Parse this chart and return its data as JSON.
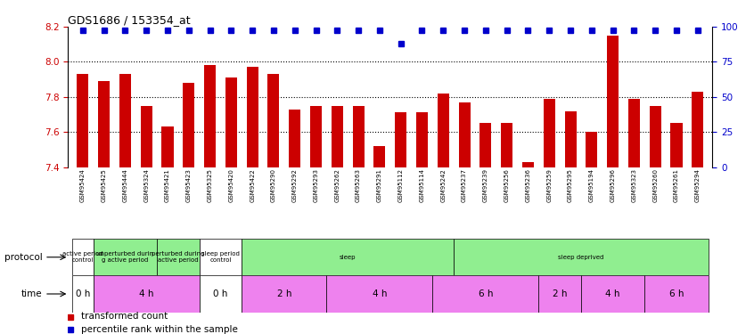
{
  "title": "GDS1686 / 153354_at",
  "samples": [
    "GSM95424",
    "GSM95425",
    "GSM95444",
    "GSM95324",
    "GSM95421",
    "GSM95423",
    "GSM95325",
    "GSM95420",
    "GSM95422",
    "GSM95290",
    "GSM95292",
    "GSM95293",
    "GSM95262",
    "GSM95263",
    "GSM95291",
    "GSM95112",
    "GSM95114",
    "GSM95242",
    "GSM95237",
    "GSM95239",
    "GSM95256",
    "GSM95236",
    "GSM95259",
    "GSM95295",
    "GSM95194",
    "GSM95296",
    "GSM95323",
    "GSM95260",
    "GSM95261",
    "GSM95294"
  ],
  "bar_values": [
    7.93,
    7.89,
    7.93,
    7.75,
    7.63,
    7.88,
    7.98,
    7.91,
    7.97,
    7.93,
    7.73,
    7.75,
    7.75,
    7.75,
    7.52,
    7.71,
    7.71,
    7.82,
    7.77,
    7.65,
    7.65,
    7.43,
    7.79,
    7.72,
    7.6,
    8.15,
    7.79,
    7.75,
    7.65,
    7.83
  ],
  "percentile_values": [
    100,
    100,
    100,
    100,
    100,
    100,
    100,
    100,
    100,
    100,
    100,
    100,
    100,
    100,
    100,
    90,
    100,
    100,
    100,
    100,
    100,
    100,
    100,
    100,
    100,
    100,
    100,
    100,
    100,
    100
  ],
  "ylim_left": [
    7.4,
    8.2
  ],
  "ylim_right": [
    0,
    100
  ],
  "yticks_left": [
    7.4,
    7.6,
    7.8,
    8.0,
    8.2
  ],
  "yticks_right": [
    0,
    25,
    50,
    75,
    100
  ],
  "hlines": [
    7.6,
    7.8,
    8.0
  ],
  "bar_color": "#cc0000",
  "percentile_color": "#0000cc",
  "protocol_sections": [
    {
      "label": "active period\ncontrol",
      "start": 0,
      "end": 1,
      "color": "#ffffff"
    },
    {
      "label": "unperturbed durin\ng active period",
      "start": 1,
      "end": 4,
      "color": "#90ee90"
    },
    {
      "label": "perturbed during\nactive period",
      "start": 4,
      "end": 6,
      "color": "#90ee90"
    },
    {
      "label": "sleep period\ncontrol",
      "start": 6,
      "end": 8,
      "color": "#ffffff"
    },
    {
      "label": "sleep",
      "start": 8,
      "end": 18,
      "color": "#90ee90"
    },
    {
      "label": "sleep deprived",
      "start": 18,
      "end": 30,
      "color": "#90ee90"
    }
  ],
  "time_sections": [
    {
      "label": "0 h",
      "start": 0,
      "end": 1,
      "color": "#ffffff"
    },
    {
      "label": "4 h",
      "start": 1,
      "end": 6,
      "color": "#ee82ee"
    },
    {
      "label": "0 h",
      "start": 6,
      "end": 8,
      "color": "#ffffff"
    },
    {
      "label": "2 h",
      "start": 8,
      "end": 12,
      "color": "#ee82ee"
    },
    {
      "label": "4 h",
      "start": 12,
      "end": 17,
      "color": "#ee82ee"
    },
    {
      "label": "6 h",
      "start": 17,
      "end": 22,
      "color": "#ee82ee"
    },
    {
      "label": "2 h",
      "start": 22,
      "end": 24,
      "color": "#ee82ee"
    },
    {
      "label": "4 h",
      "start": 24,
      "end": 27,
      "color": "#ee82ee"
    },
    {
      "label": "6 h",
      "start": 27,
      "end": 30,
      "color": "#ee82ee"
    }
  ],
  "legend_items": [
    {
      "label": "transformed count",
      "color": "#cc0000"
    },
    {
      "label": "percentile rank within the sample",
      "color": "#0000cc"
    }
  ]
}
